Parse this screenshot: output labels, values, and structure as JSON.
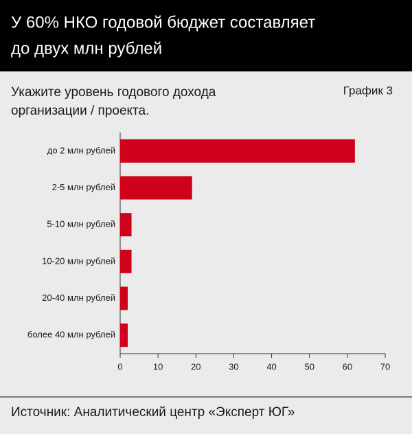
{
  "chart_data": {
    "type": "hbar",
    "title": [
      "У 60% НКО годовой бюджет составляет",
      "до двух млн рублей"
    ],
    "subtitle": [
      "Укажите уровень годового дохода",
      "организации / проекта."
    ],
    "label": "График 3",
    "source": "Источник: Аналитический центр «Эксперт ЮГ»",
    "categories": [
      "до 2 млн рублей",
      "2-5 млн рублей",
      "5-10 млн рублей",
      "10-20 млн рублей",
      "20-40 млн рублей",
      "более 40 млн рублей"
    ],
    "values": [
      62,
      19,
      3,
      3,
      2,
      2
    ],
    "color": "#d0021b",
    "xlim": [
      0,
      70
    ],
    "xticks": [
      0,
      10,
      20,
      30,
      40,
      50,
      60,
      70
    ]
  }
}
